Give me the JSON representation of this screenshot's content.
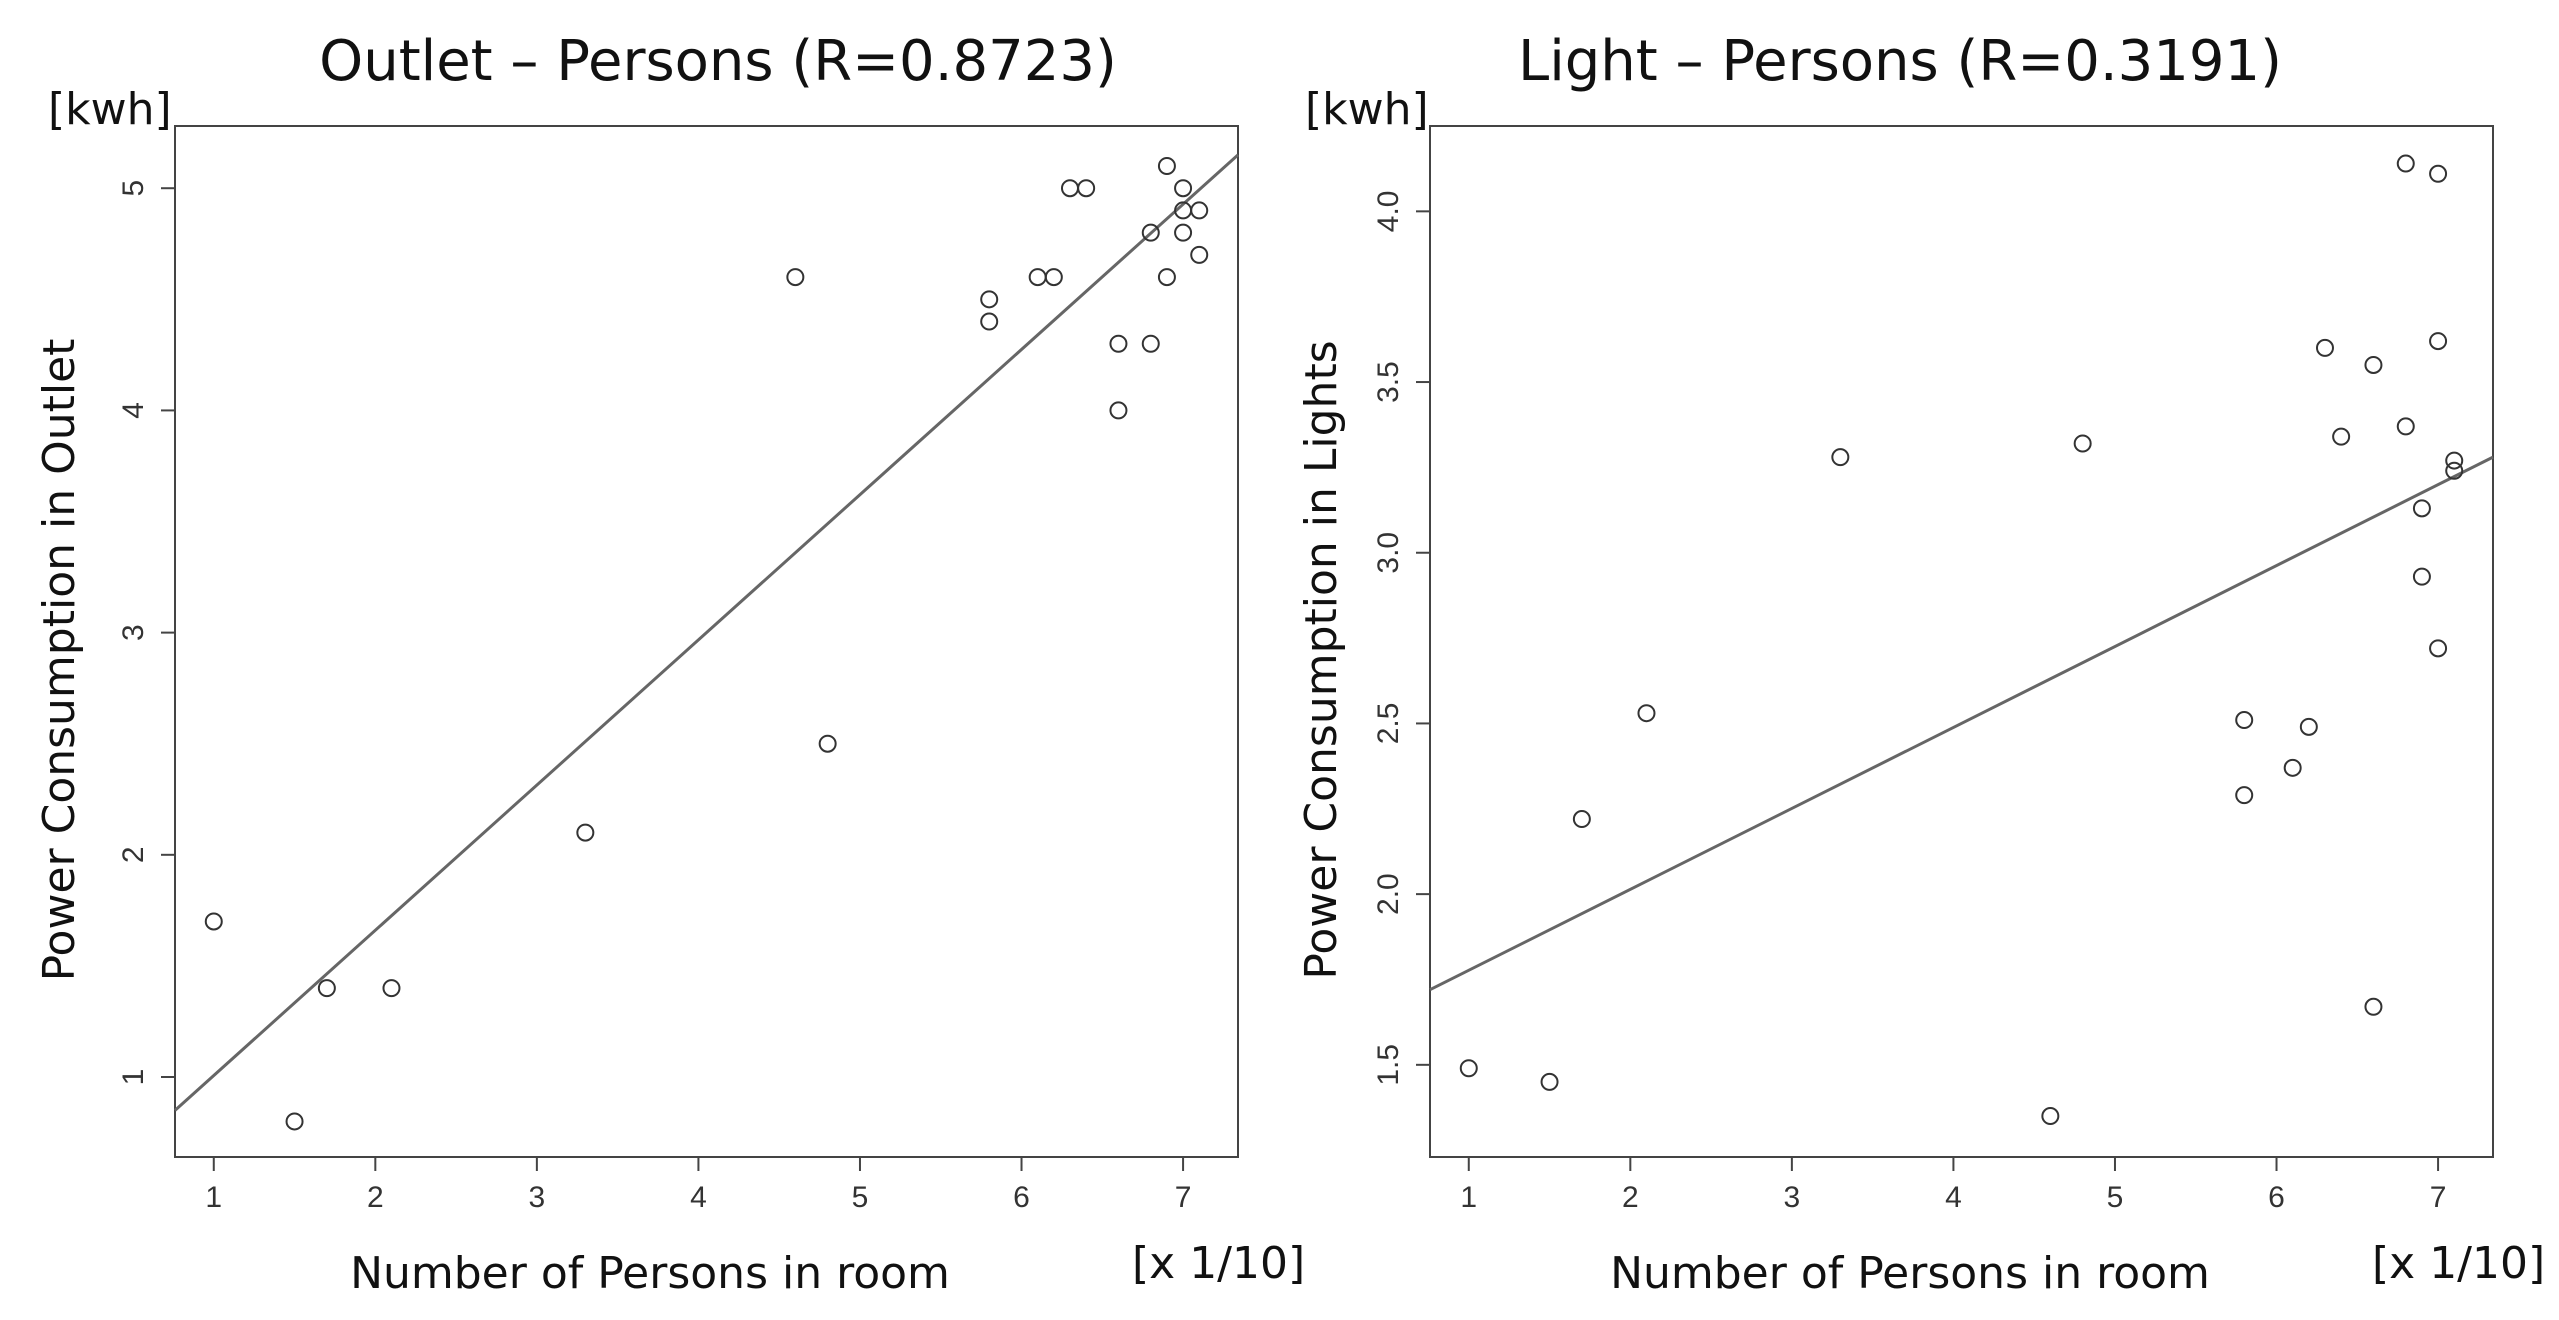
{
  "chart_data": [
    {
      "type": "scatter",
      "title": "Outlet – Persons (R=0.8723)",
      "xlabel": "Number of Persons in room",
      "ylabel": "Power Consumption in Outlet",
      "yunit": "[kwh]",
      "xunit": "[x 1/10]",
      "xlim": [
        0.76,
        7.34
      ],
      "ylim": [
        0.64,
        5.28
      ],
      "xticks": [
        1,
        2,
        3,
        4,
        5,
        6,
        7
      ],
      "yticks": [
        1,
        2,
        3,
        4,
        5
      ],
      "points": [
        [
          1.0,
          1.7
        ],
        [
          1.5,
          0.8
        ],
        [
          1.7,
          1.4
        ],
        [
          2.1,
          1.4
        ],
        [
          3.3,
          2.1
        ],
        [
          4.6,
          4.6
        ],
        [
          4.8,
          2.5
        ],
        [
          5.8,
          4.5
        ],
        [
          5.8,
          4.4
        ],
        [
          6.1,
          4.6
        ],
        [
          6.2,
          4.6
        ],
        [
          6.3,
          5.0
        ],
        [
          6.4,
          5.0
        ],
        [
          6.6,
          4.3
        ],
        [
          6.6,
          4.0
        ],
        [
          6.8,
          4.8
        ],
        [
          6.8,
          4.3
        ],
        [
          6.9,
          5.1
        ],
        [
          6.9,
          4.6
        ],
        [
          7.0,
          5.0
        ],
        [
          7.0,
          4.9
        ],
        [
          7.0,
          4.8
        ],
        [
          7.1,
          4.9
        ],
        [
          7.1,
          4.7
        ]
      ],
      "fit_line": [
        [
          0.76,
          0.85
        ],
        [
          7.34,
          5.15
        ]
      ]
    },
    {
      "type": "scatter",
      "title": "Light  – Persons (R=0.3191)",
      "xlabel": "Number of Persons in room",
      "ylabel": "Power Consumption in Lights",
      "yunit": "[kwh]",
      "xunit": "[x 1/10]",
      "xlim": [
        0.76,
        7.34
      ],
      "ylim": [
        1.23,
        4.25
      ],
      "xticks": [
        1,
        2,
        3,
        4,
        5,
        6,
        7
      ],
      "yticks": [
        1.5,
        2.0,
        2.5,
        3.0,
        3.5,
        4.0
      ],
      "yticklabels": [
        "1.5",
        "2.0",
        "2.5",
        "3.0",
        "3.5",
        "4.0"
      ],
      "points": [
        [
          1.0,
          1.49
        ],
        [
          1.5,
          1.45
        ],
        [
          1.7,
          2.22
        ],
        [
          2.1,
          2.53
        ],
        [
          3.3,
          3.28
        ],
        [
          4.6,
          1.35
        ],
        [
          4.8,
          3.32
        ],
        [
          5.8,
          2.51
        ],
        [
          5.8,
          2.29
        ],
        [
          6.1,
          2.37
        ],
        [
          6.2,
          2.49
        ],
        [
          6.3,
          3.6
        ],
        [
          6.4,
          3.34
        ],
        [
          6.6,
          3.55
        ],
        [
          6.6,
          1.67
        ],
        [
          6.8,
          4.14
        ],
        [
          6.8,
          3.37
        ],
        [
          6.9,
          3.13
        ],
        [
          6.9,
          2.93
        ],
        [
          7.0,
          4.11
        ],
        [
          7.0,
          3.62
        ],
        [
          7.0,
          2.72
        ],
        [
          7.1,
          3.27
        ],
        [
          7.1,
          3.24
        ]
      ],
      "fit_line": [
        [
          0.76,
          1.72
        ],
        [
          7.34,
          3.28
        ]
      ]
    }
  ]
}
